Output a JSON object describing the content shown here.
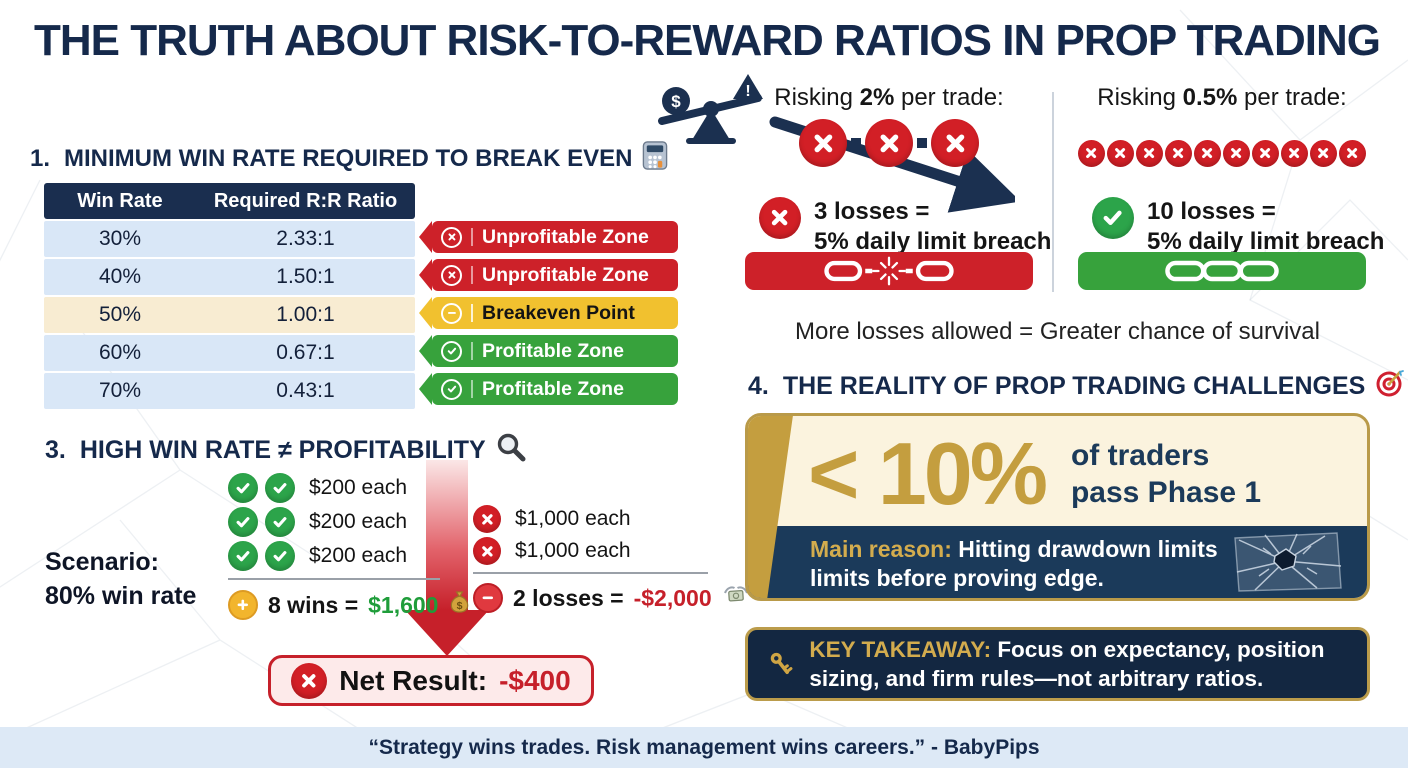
{
  "title": "THE TRUTH ABOUT RISK-TO-REWARD RATIOS IN PROP TRADING",
  "breakeven": {
    "num": "1.",
    "heading": "MINIMUM WIN RATE REQUIRED TO BREAK EVEN",
    "heading_icon": "calculator-icon",
    "table": {
      "headers": [
        "Win Rate",
        "Required R:R Ratio"
      ],
      "rows": [
        {
          "win_rate": "30%",
          "rr": "2.33:1",
          "zone": "Unprofitable Zone",
          "zone_type": "unprofitable"
        },
        {
          "win_rate": "40%",
          "rr": "1.50:1",
          "zone": "Unprofitable Zone",
          "zone_type": "unprofitable"
        },
        {
          "win_rate": "50%",
          "rr": "1.00:1",
          "zone": "Breakeven Point",
          "zone_type": "breakeven"
        },
        {
          "win_rate": "60%",
          "rr": "0.67:1",
          "zone": "Profitable Zone",
          "zone_type": "profitable"
        },
        {
          "win_rate": "70%",
          "rr": "0.43:1",
          "zone": "Profitable Zone",
          "zone_type": "profitable"
        }
      ]
    }
  },
  "risk_comparison": {
    "left": {
      "prefix": "Risking ",
      "amount": "2%",
      "suffix": " per trade:",
      "fail_icons": 3,
      "result_line1": "3 losses =",
      "result_line2": "5% daily limit breach",
      "status_icon": "x-circle-icon",
      "chain": "broken-chain-icon"
    },
    "right": {
      "prefix": "Risking ",
      "amount": "0.5%",
      "suffix": " per trade:",
      "fail_icons": 10,
      "result_line1": "10 losses =",
      "result_line2": "5% daily limit breach",
      "status_icon": "check-circle-icon",
      "chain": "intact-chain-icon"
    },
    "conclusion": "More losses allowed = Greater chance of survival"
  },
  "win_rate_myth": {
    "num": "3.",
    "heading": "HIGH WIN RATE ≠ PROFITABILITY",
    "heading_icon": "magnifier-icon",
    "scenario_label": "Scenario:",
    "scenario_value": "80% win rate",
    "wins": {
      "rows": [
        "$200 each",
        "$200 each",
        "$200 each"
      ],
      "total_prefix": "8 wins = ",
      "total_value": "$1,600",
      "total_icon": "money-bag-icon"
    },
    "losses": {
      "rows": [
        "$1,000 each",
        "$1,000 each"
      ],
      "total_prefix": "2 losses = ",
      "total_value": "-$2,000",
      "total_icon": "flying-money-icon"
    },
    "net_label": "Net Result: ",
    "net_value": "-$400"
  },
  "reality": {
    "num": "4.",
    "heading": "THE REALITY OF PROP TRADING CHALLENGES",
    "heading_icon": "target-icon",
    "stat_value": "< 10%",
    "stat_line1": "of traders",
    "stat_line2": "pass Phase 1",
    "reason_label": "Main reason:",
    "reason_line1": " Hitting drawdown limits",
    "reason_line2": "limits before proving edge."
  },
  "takeaway": {
    "label": "KEY TAKEAWAY:",
    "text": " Focus on expectancy, position sizing, and firm rules—not arbitrary ratios.",
    "icon": "key-icon"
  },
  "footer": {
    "quote": "“Strategy wins trades. Risk management wins careers.” - BabyPips"
  },
  "colors": {
    "navy": "#15294b",
    "red": "#cd2129",
    "green": "#37a23c",
    "gold": "#c49e3f",
    "yellow": "#f1c12f",
    "cream": "#fbf3de",
    "footer_blue": "#dde9f6"
  }
}
